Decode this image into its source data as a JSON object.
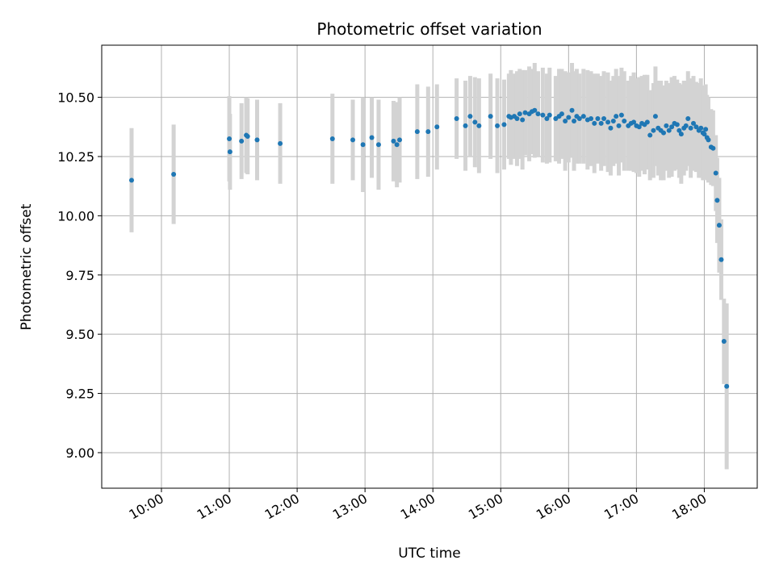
{
  "chart_data": {
    "type": "scatter",
    "title": "Photometric offset variation",
    "xlabel": "UTC time",
    "ylabel": "Photometric offset",
    "x_unit": "UTC hour of day (decimal)",
    "xlim": [
      9.12,
      18.78
    ],
    "ylim": [
      8.85,
      10.72
    ],
    "x_ticks": [
      {
        "value": 10,
        "label": "10:00"
      },
      {
        "value": 11,
        "label": "11:00"
      },
      {
        "value": 12,
        "label": "12:00"
      },
      {
        "value": 13,
        "label": "13:00"
      },
      {
        "value": 14,
        "label": "14:00"
      },
      {
        "value": 15,
        "label": "15:00"
      },
      {
        "value": 16,
        "label": "16:00"
      },
      {
        "value": 17,
        "label": "17:00"
      },
      {
        "value": 18,
        "label": "18:00"
      }
    ],
    "y_ticks": [
      {
        "value": 9.0,
        "label": "9.00"
      },
      {
        "value": 9.25,
        "label": "9.25"
      },
      {
        "value": 9.5,
        "label": "9.50"
      },
      {
        "value": 9.75,
        "label": "9.75"
      },
      {
        "value": 10.0,
        "label": "10.00"
      },
      {
        "value": 10.25,
        "label": "10.25"
      },
      {
        "value": 10.5,
        "label": "10.50"
      }
    ],
    "grid": true,
    "point_color": "#1f77b4",
    "errorbar_color": "#d3d3d3",
    "series": [
      {
        "points": [
          [
            9.56,
            10.15,
            0.22
          ],
          [
            10.18,
            10.175,
            0.21
          ],
          [
            11.0,
            10.325,
            0.18
          ],
          [
            11.01,
            10.27,
            0.16
          ],
          [
            11.18,
            10.315,
            0.16
          ],
          [
            11.25,
            10.34,
            0.16
          ],
          [
            11.27,
            10.335,
            0.16
          ],
          [
            11.41,
            10.32,
            0.17
          ],
          [
            11.75,
            10.305,
            0.17
          ],
          [
            12.52,
            10.325,
            0.19
          ],
          [
            12.82,
            10.32,
            0.17
          ],
          [
            12.97,
            10.3,
            0.2
          ],
          [
            13.1,
            10.33,
            0.17
          ],
          [
            13.2,
            10.3,
            0.19
          ],
          [
            13.42,
            10.315,
            0.17
          ],
          [
            13.47,
            10.3,
            0.18
          ],
          [
            13.51,
            10.32,
            0.18
          ],
          [
            13.77,
            10.355,
            0.2
          ],
          [
            13.93,
            10.355,
            0.19
          ],
          [
            14.06,
            10.375,
            0.18
          ],
          [
            14.35,
            10.41,
            0.17
          ],
          [
            14.48,
            10.38,
            0.19
          ],
          [
            14.55,
            10.42,
            0.17
          ],
          [
            14.62,
            10.395,
            0.19
          ],
          [
            14.68,
            10.38,
            0.2
          ],
          [
            14.85,
            10.42,
            0.18
          ],
          [
            14.95,
            10.38,
            0.2
          ],
          [
            15.05,
            10.385,
            0.19
          ],
          [
            15.12,
            10.42,
            0.18
          ],
          [
            15.15,
            10.415,
            0.2
          ],
          [
            15.2,
            10.42,
            0.18
          ],
          [
            15.24,
            10.41,
            0.2
          ],
          [
            15.28,
            10.43,
            0.19
          ],
          [
            15.32,
            10.405,
            0.21
          ],
          [
            15.36,
            10.435,
            0.18
          ],
          [
            15.42,
            10.43,
            0.2
          ],
          [
            15.46,
            10.44,
            0.18
          ],
          [
            15.5,
            10.445,
            0.2
          ],
          [
            15.55,
            10.43,
            0.18
          ],
          [
            15.62,
            10.425,
            0.2
          ],
          [
            15.68,
            10.41,
            0.19
          ],
          [
            15.72,
            10.425,
            0.2
          ],
          [
            15.81,
            10.41,
            0.18
          ],
          [
            15.86,
            10.42,
            0.2
          ],
          [
            15.9,
            10.43,
            0.19
          ],
          [
            15.95,
            10.4,
            0.21
          ],
          [
            16.0,
            10.415,
            0.19
          ],
          [
            16.05,
            10.445,
            0.2
          ],
          [
            16.08,
            10.4,
            0.21
          ],
          [
            16.12,
            10.42,
            0.2
          ],
          [
            16.16,
            10.41,
            0.19
          ],
          [
            16.22,
            10.42,
            0.2
          ],
          [
            16.28,
            10.405,
            0.21
          ],
          [
            16.33,
            10.41,
            0.2
          ],
          [
            16.38,
            10.39,
            0.21
          ],
          [
            16.43,
            10.41,
            0.19
          ],
          [
            16.48,
            10.39,
            0.2
          ],
          [
            16.52,
            10.41,
            0.2
          ],
          [
            16.58,
            10.395,
            0.21
          ],
          [
            16.62,
            10.37,
            0.2
          ],
          [
            16.66,
            10.4,
            0.19
          ],
          [
            16.7,
            10.42,
            0.2
          ],
          [
            16.74,
            10.38,
            0.21
          ],
          [
            16.78,
            10.425,
            0.2
          ],
          [
            16.82,
            10.4,
            0.21
          ],
          [
            16.88,
            10.38,
            0.19
          ],
          [
            16.92,
            10.39,
            0.2
          ],
          [
            16.96,
            10.395,
            0.21
          ],
          [
            17.0,
            10.38,
            0.2
          ],
          [
            17.04,
            10.375,
            0.21
          ],
          [
            17.08,
            10.39,
            0.2
          ],
          [
            17.12,
            10.385,
            0.21
          ],
          [
            17.16,
            10.395,
            0.2
          ],
          [
            17.2,
            10.34,
            0.19
          ],
          [
            17.25,
            10.36,
            0.2
          ],
          [
            17.28,
            10.42,
            0.21
          ],
          [
            17.32,
            10.37,
            0.2
          ],
          [
            17.36,
            10.36,
            0.21
          ],
          [
            17.4,
            10.35,
            0.2
          ],
          [
            17.44,
            10.38,
            0.19
          ],
          [
            17.48,
            10.36,
            0.2
          ],
          [
            17.52,
            10.375,
            0.21
          ],
          [
            17.56,
            10.39,
            0.2
          ],
          [
            17.6,
            10.385,
            0.19
          ],
          [
            17.63,
            10.36,
            0.2
          ],
          [
            17.66,
            10.345,
            0.21
          ],
          [
            17.7,
            10.37,
            0.2
          ],
          [
            17.73,
            10.38,
            0.19
          ],
          [
            17.76,
            10.41,
            0.2
          ],
          [
            17.8,
            10.37,
            0.21
          ],
          [
            17.84,
            10.39,
            0.2
          ],
          [
            17.88,
            10.375,
            0.19
          ],
          [
            17.92,
            10.36,
            0.2
          ],
          [
            17.95,
            10.37,
            0.21
          ],
          [
            17.98,
            10.35,
            0.2
          ],
          [
            18.0,
            10.345,
            0.19
          ],
          [
            18.02,
            10.365,
            0.19
          ],
          [
            18.04,
            10.33,
            0.18
          ],
          [
            18.06,
            10.32,
            0.18
          ],
          [
            18.1,
            10.29,
            0.16
          ],
          [
            18.13,
            10.285,
            0.16
          ],
          [
            18.17,
            10.18,
            0.16
          ],
          [
            18.19,
            10.065,
            0.18
          ],
          [
            18.22,
            9.96,
            0.2
          ],
          [
            18.25,
            9.815,
            0.17
          ],
          [
            18.29,
            9.47,
            0.18
          ],
          [
            18.33,
            9.28,
            0.35
          ]
        ]
      }
    ]
  }
}
